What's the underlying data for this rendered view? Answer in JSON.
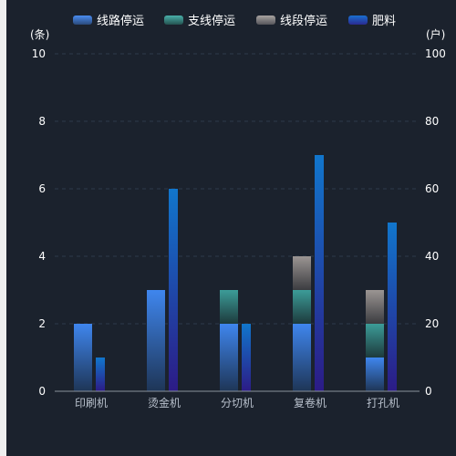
{
  "chart_data": {
    "type": "bar",
    "categories": [
      "印刷机",
      "烫金机",
      "分切机",
      "复卷机",
      "打孔机"
    ],
    "left_axis": {
      "unit": "(条)",
      "ylim": [
        0,
        10
      ],
      "ticks": [
        0,
        2,
        4,
        6,
        8,
        10
      ]
    },
    "right_axis": {
      "unit": "(户)",
      "ylim": [
        0,
        100
      ],
      "ticks": [
        0,
        20,
        40,
        60,
        80,
        100
      ]
    },
    "stacked_series": [
      {
        "name": "线路停运",
        "values": [
          2,
          3,
          2,
          2,
          1
        ],
        "color": "#3f86ee"
      },
      {
        "name": "支线停运",
        "values": [
          0,
          0,
          1,
          1,
          1
        ],
        "color": "#3c9c98"
      },
      {
        "name": "线段停运",
        "values": [
          0,
          0,
          0,
          1,
          1
        ],
        "color": "#9b9593"
      }
    ],
    "right_series": {
      "name": "肥料",
      "values": [
        10,
        60,
        20,
        70,
        50
      ],
      "color": "#1173c9"
    },
    "grid": true,
    "legend_position": "top"
  }
}
